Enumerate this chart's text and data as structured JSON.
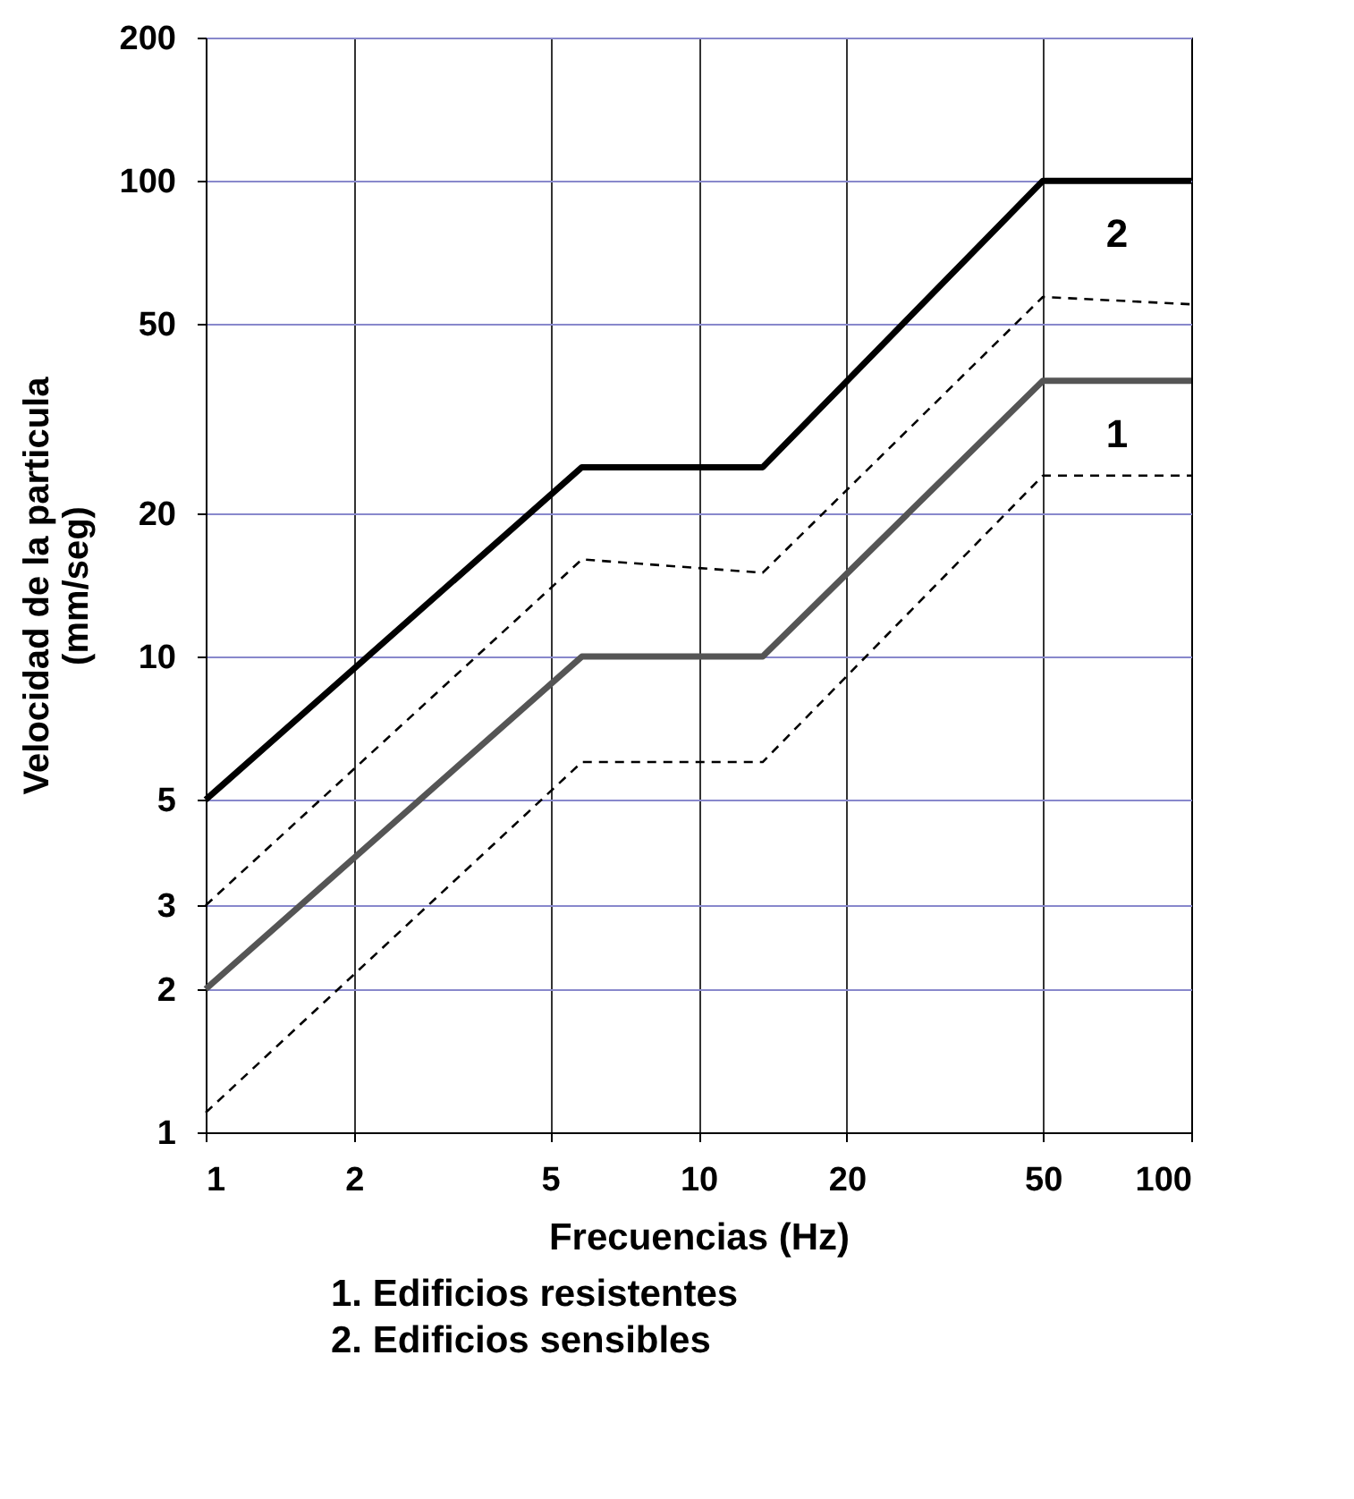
{
  "chart_data": {
    "type": "line",
    "xlabel": "Frecuencias   (Hz)",
    "ylabel": "Velocidad de la particula\n(mm/seg)",
    "log": "xy",
    "grid": true,
    "legend": false,
    "xlim": [
      1,
      100
    ],
    "ylim": [
      1,
      200
    ],
    "xticks": [
      1,
      2,
      5,
      10,
      20,
      50,
      100
    ],
    "yticks": [
      1,
      2,
      3,
      5,
      10,
      20,
      50,
      100,
      200
    ],
    "series": [
      {
        "name": "2",
        "color": "#000000",
        "line_style": "solid",
        "x": [
          1,
          5.8,
          13.5,
          50,
          100
        ],
        "values": [
          5,
          25,
          25,
          100,
          100
        ]
      },
      {
        "color": "#000000",
        "line_style": "dashed",
        "x": [
          1,
          5.8,
          13.5,
          50,
          100
        ],
        "values": [
          3,
          16,
          15,
          57,
          55
        ]
      },
      {
        "name": "1",
        "color": "#555555",
        "line_style": "solid",
        "x": [
          1,
          5.8,
          13.5,
          50,
          100
        ],
        "values": [
          2,
          10,
          10,
          38,
          38
        ]
      },
      {
        "color": "#000000",
        "line_style": "dashed",
        "x": [
          1,
          5.8,
          13.5,
          50,
          100
        ],
        "values": [
          1.1,
          6,
          6,
          24,
          24
        ]
      }
    ],
    "annotations": [
      "1. Edificios resistentes",
      "2. Edificios sensibles"
    ]
  }
}
